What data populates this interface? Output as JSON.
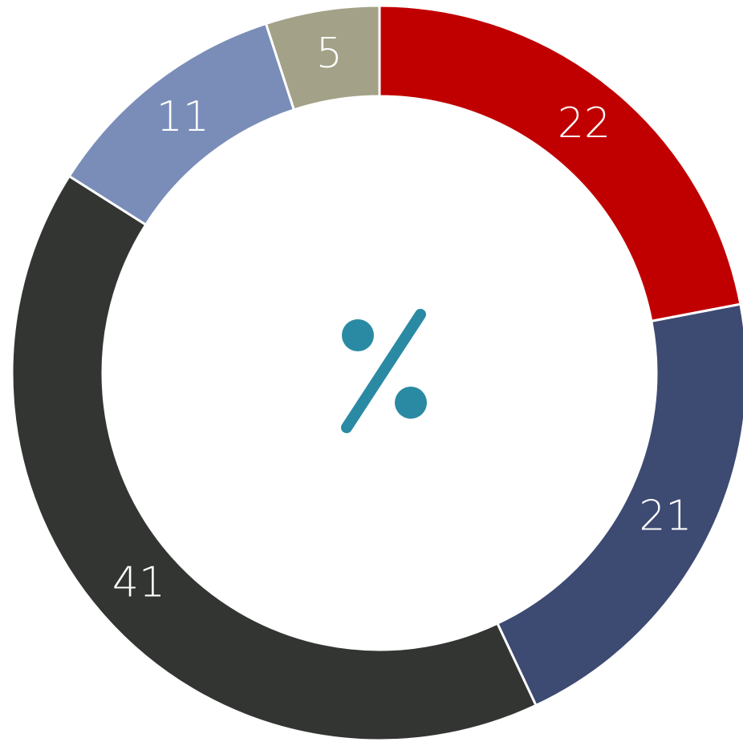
{
  "chart_data": {
    "type": "donut",
    "values": [
      22,
      21,
      41,
      11,
      5
    ],
    "colors": [
      "#c00000",
      "#3d4a72",
      "#333533",
      "#7a8db8",
      "#a3a288"
    ]
  }
}
